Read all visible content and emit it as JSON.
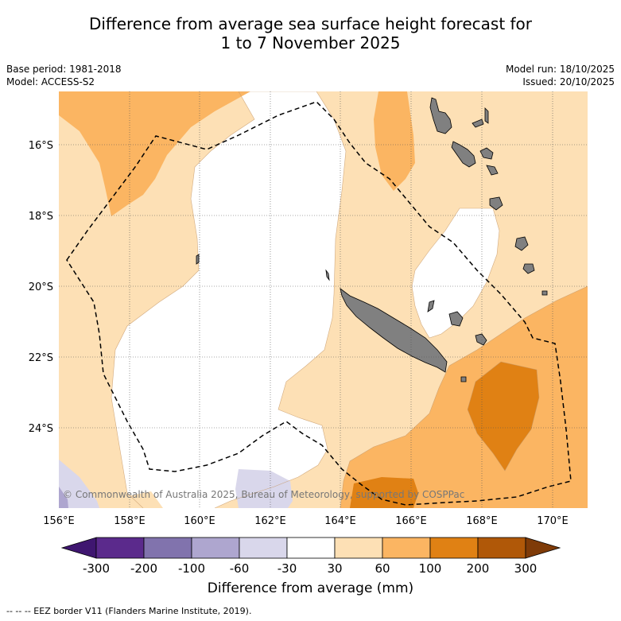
{
  "title_line1": "Difference from average sea surface height forecast for",
  "title_line2": "1 to 7 November 2025",
  "base_period": "Base period: 1981-2018",
  "model": "Model: ACCESS-S2",
  "model_run": "Model run: 18/10/2025",
  "issued": "Issued: 20/10/2025",
  "copyright": "© Commonwealth of Australia 2025, Bureau of Meteorology, supported by COSPPac",
  "lat_labels": [
    "16°S",
    "18°S",
    "20°S",
    "22°S",
    "24°S"
  ],
  "lon_labels": [
    "156°E",
    "158°E",
    "160°E",
    "162°E",
    "164°E",
    "166°E",
    "168°E",
    "170°E"
  ],
  "colorbar": {
    "ticks": [
      "-300",
      "-200",
      "-100",
      "-60",
      "-30",
      "30",
      "60",
      "100",
      "200",
      "300"
    ],
    "colors": [
      "#3f1670",
      "#5b2a8c",
      "#8173ad",
      "#aea6cf",
      "#d9d7eb",
      "#ffffff",
      "#fde0b5",
      "#fbb562",
      "#e08114",
      "#b05808",
      "#7f3b08"
    ],
    "label": "Difference from average (mm)"
  },
  "legend_note": "--  --  -- EEZ border V11 (Flanders Marine Institute, 2019).",
  "land_color": "#808080"
}
